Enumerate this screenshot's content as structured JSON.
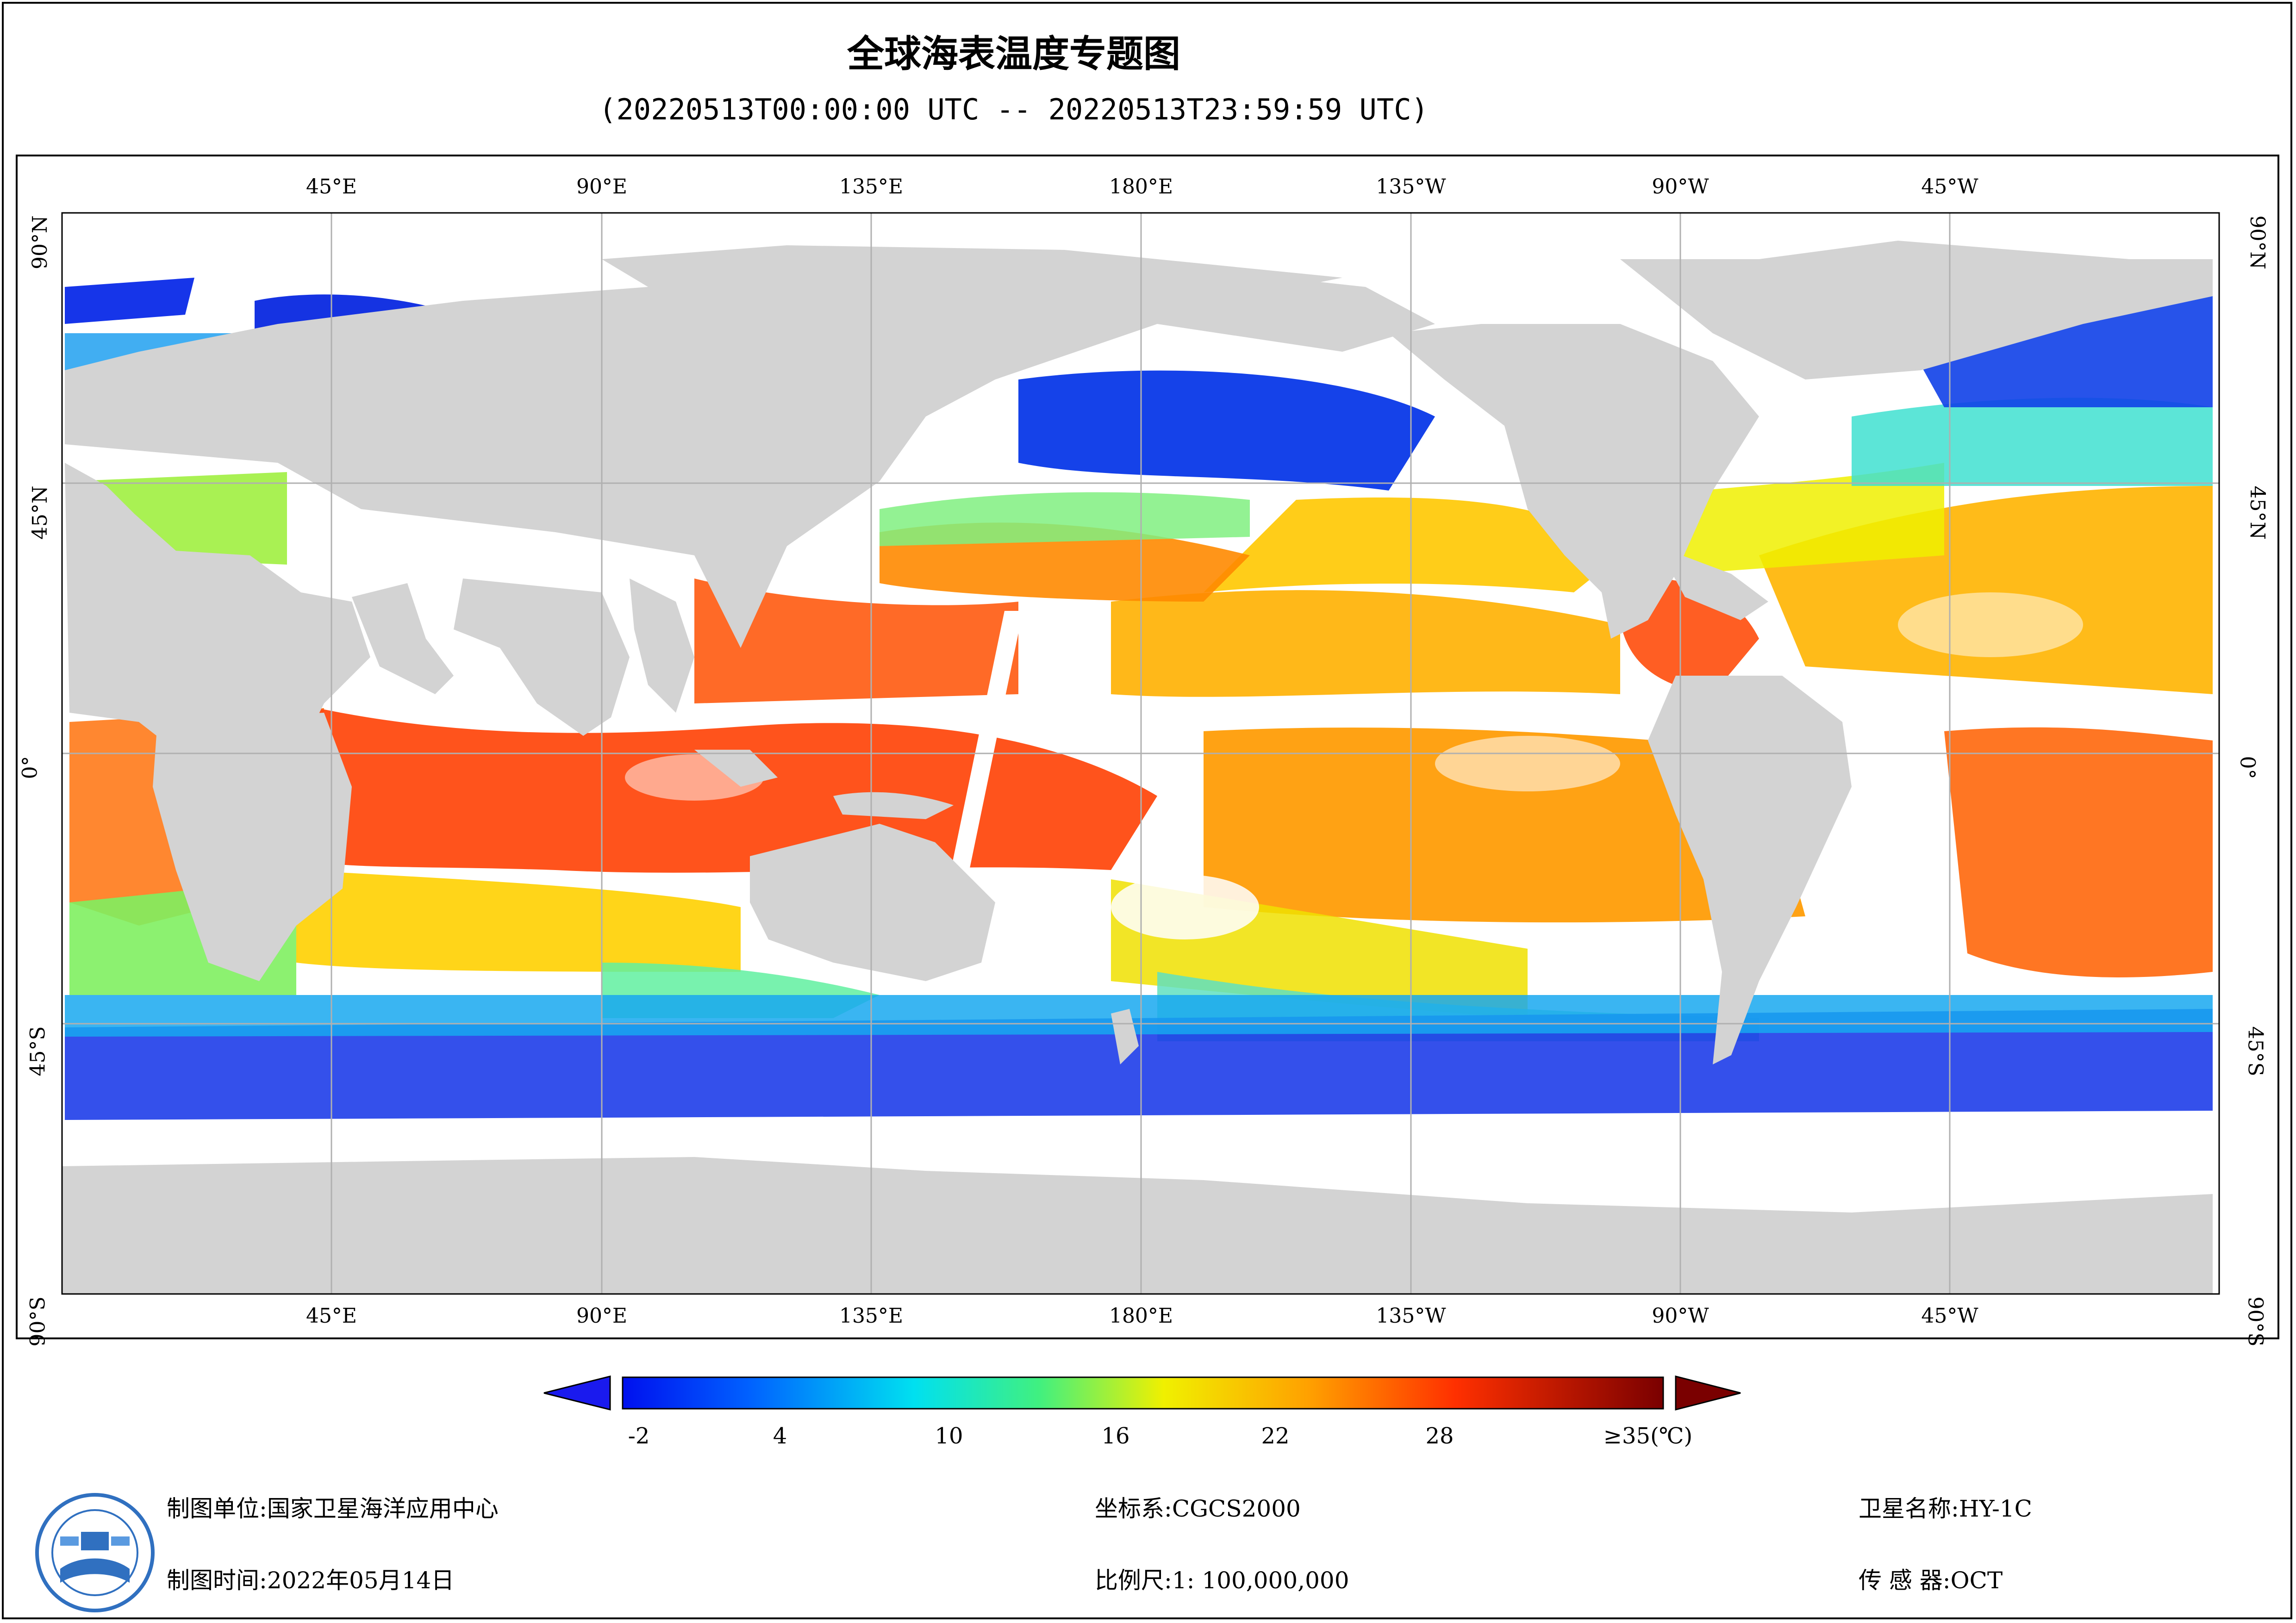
{
  "title": "全球海表温度专题图",
  "subtitle": "(20220513T00:00:00 UTC -- 20220513T23:59:59 UTC)",
  "axes": {
    "top_ticks": [
      "45°E",
      "90°E",
      "135°E",
      "180°E",
      "135°W",
      "90°W",
      "45°W"
    ],
    "bottom_ticks": [
      "45°E",
      "90°E",
      "135°E",
      "180°E",
      "135°W",
      "90°W",
      "45°W"
    ],
    "left_ticks": [
      "90°N",
      "45°N",
      "0°",
      "45°S",
      "90°S"
    ],
    "right_ticks": [
      "90°N",
      "45°N",
      "0°",
      "45°S",
      "90°S"
    ]
  },
  "colorbar": {
    "labels": [
      "-2",
      "4",
      "10",
      "16",
      "22",
      "28",
      "≥35(℃)"
    ],
    "min": -2,
    "max": 35,
    "low_extend_color": "#1a1aee",
    "high_extend_color": "#7a0000"
  },
  "footer": {
    "producer_label": "制图单位:",
    "producer": "国家卫星海洋应用中心",
    "date_label": "制图时间:",
    "date": "2022年05月14日",
    "crs_label": "坐标系:",
    "crs": "CGCS2000",
    "scale_label": "比例尺:",
    "scale": "1: 100,000,000",
    "satellite_label": "卫星名称:",
    "satellite": "HY-1C",
    "sensor_label": "传 感 器:",
    "sensor": "OCT"
  },
  "colors": {
    "land": "#d3d3d3",
    "cloud": "#ffffff",
    "grid": "#b0b0b0"
  }
}
